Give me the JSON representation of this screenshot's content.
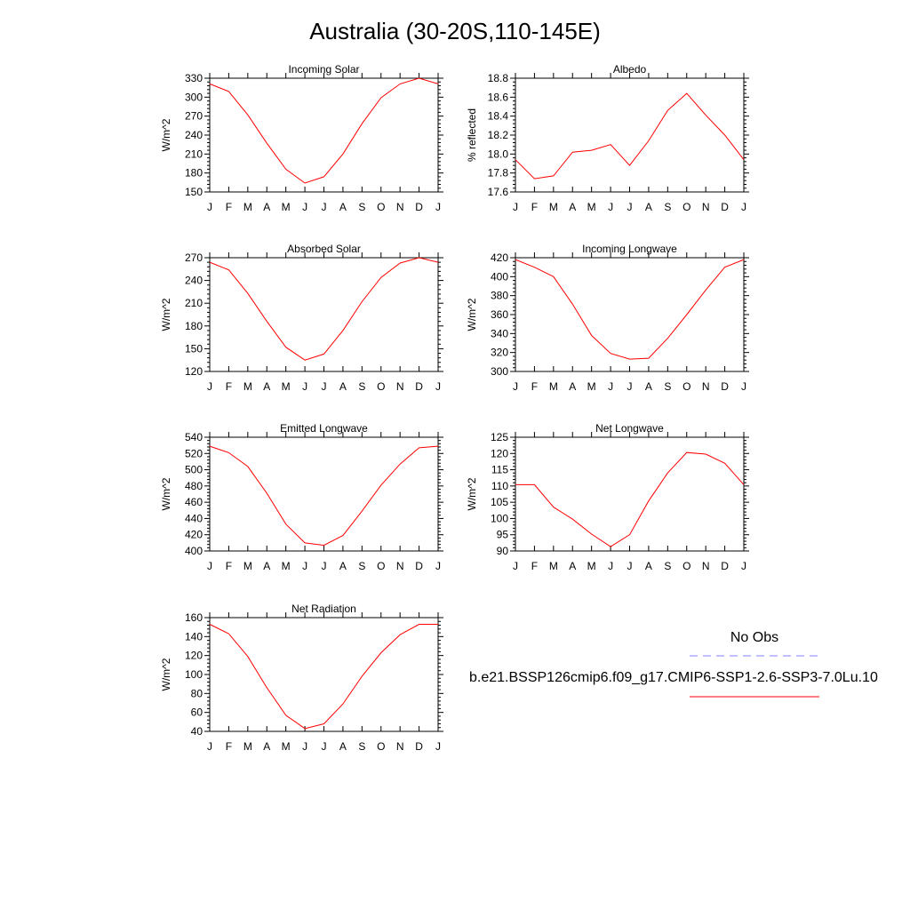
{
  "title": "Australia (30-20S,110-145E)",
  "months": [
    "J",
    "F",
    "M",
    "A",
    "M",
    "J",
    "J",
    "A",
    "S",
    "O",
    "N",
    "D",
    "J"
  ],
  "legend": {
    "obs_label": "No Obs",
    "obs_color": "#8080ff",
    "model_label": "b.e21.BSSP126cmip6.f09_g17.CMIP6-SSP1-2.6-SSP3-7.0Lu.10",
    "model_color": "#ff0000"
  },
  "chart_data": [
    {
      "type": "line",
      "title": "Incoming Solar",
      "ylabel": "W/m^2",
      "ylim": [
        150,
        330
      ],
      "yticks": [
        150,
        180,
        210,
        240,
        270,
        300,
        330
      ],
      "ytick_labels": [
        "150",
        "180",
        "210",
        "240",
        "270",
        "300",
        "330"
      ],
      "categories": [
        "J",
        "F",
        "M",
        "A",
        "M",
        "J",
        "J",
        "A",
        "S",
        "O",
        "N",
        "D",
        "J"
      ],
      "series": [
        {
          "values": [
            321,
            309,
            272,
            227,
            186,
            164,
            174,
            210,
            258,
            299,
            321,
            330,
            321
          ]
        }
      ]
    },
    {
      "type": "line",
      "title": "Albedo",
      "ylabel": "% reflected",
      "ylim": [
        17.6,
        18.8
      ],
      "yticks": [
        17.6,
        17.8,
        18.0,
        18.2,
        18.4,
        18.6,
        18.8
      ],
      "ytick_labels": [
        "17.6",
        "17.8",
        "18.0",
        "18.2",
        "18.4",
        "18.6",
        "18.8"
      ],
      "categories": [
        "J",
        "F",
        "M",
        "A",
        "M",
        "J",
        "J",
        "A",
        "S",
        "O",
        "N",
        "D",
        "J"
      ],
      "series": [
        {
          "values": [
            17.94,
            17.74,
            17.77,
            18.02,
            18.04,
            18.1,
            17.88,
            18.14,
            18.46,
            18.64,
            18.41,
            18.2,
            17.94
          ]
        }
      ]
    },
    {
      "type": "line",
      "title": "Absorbed Solar",
      "ylabel": "W/m^2",
      "ylim": [
        120,
        270
      ],
      "yticks": [
        120,
        150,
        180,
        210,
        240,
        270
      ],
      "ytick_labels": [
        "120",
        "150",
        "180",
        "210",
        "240",
        "270"
      ],
      "categories": [
        "J",
        "F",
        "M",
        "A",
        "M",
        "J",
        "J",
        "A",
        "S",
        "O",
        "N",
        "D",
        "J"
      ],
      "series": [
        {
          "values": [
            264,
            254,
            223,
            186,
            152,
            135,
            143,
            174,
            212,
            244,
            263,
            270,
            264
          ]
        }
      ]
    },
    {
      "type": "line",
      "title": "Incoming Longwave",
      "ylabel": "W/m^2",
      "ylim": [
        300,
        420
      ],
      "yticks": [
        300,
        320,
        340,
        360,
        380,
        400,
        420
      ],
      "ytick_labels": [
        "300",
        "320",
        "340",
        "360",
        "380",
        "400",
        "420"
      ],
      "categories": [
        "J",
        "F",
        "M",
        "A",
        "M",
        "J",
        "J",
        "A",
        "S",
        "O",
        "N",
        "D",
        "J"
      ],
      "series": [
        {
          "values": [
            418,
            410,
            400,
            371,
            338,
            319,
            313,
            314,
            335,
            360,
            386,
            410,
            418
          ]
        }
      ]
    },
    {
      "type": "line",
      "title": "Emitted Longwave",
      "ylabel": "W/m^2",
      "ylim": [
        400,
        540
      ],
      "yticks": [
        400,
        420,
        440,
        460,
        480,
        500,
        520,
        540
      ],
      "ytick_labels": [
        "400",
        "420",
        "440",
        "460",
        "480",
        "500",
        "520",
        "540"
      ],
      "categories": [
        "J",
        "F",
        "M",
        "A",
        "M",
        "J",
        "J",
        "A",
        "S",
        "O",
        "N",
        "D",
        "J"
      ],
      "series": [
        {
          "values": [
            529,
            521,
            504,
            471,
            433,
            410,
            407,
            419,
            449,
            481,
            507,
            527,
            529
          ]
        }
      ]
    },
    {
      "type": "line",
      "title": "Net Longwave",
      "ylabel": "W/m^2",
      "ylim": [
        90,
        125
      ],
      "yticks": [
        90,
        95,
        100,
        105,
        110,
        115,
        120,
        125
      ],
      "ytick_labels": [
        "90",
        "95",
        "100",
        "105",
        "110",
        "115",
        "120",
        "125"
      ],
      "categories": [
        "J",
        "F",
        "M",
        "A",
        "M",
        "J",
        "J",
        "A",
        "S",
        "O",
        "N",
        "D",
        "J"
      ],
      "series": [
        {
          "values": [
            110.4,
            110.4,
            103.5,
            99.8,
            95.2,
            91.3,
            95.0,
            105.4,
            114.0,
            120.3,
            119.8,
            117.0,
            110.4
          ]
        }
      ]
    },
    {
      "type": "line",
      "title": "Net Radiation",
      "ylabel": "W/m^2",
      "ylim": [
        40,
        160
      ],
      "yticks": [
        40,
        60,
        80,
        100,
        120,
        140,
        160
      ],
      "ytick_labels": [
        "40",
        "60",
        "80",
        "100",
        "120",
        "140",
        "160"
      ],
      "categories": [
        "J",
        "F",
        "M",
        "A",
        "M",
        "J",
        "J",
        "A",
        "S",
        "O",
        "N",
        "D",
        "J"
      ],
      "series": [
        {
          "values": [
            153,
            143,
            119,
            86,
            57,
            43,
            48,
            69,
            98,
            123,
            142,
            153,
            153
          ]
        }
      ]
    }
  ]
}
